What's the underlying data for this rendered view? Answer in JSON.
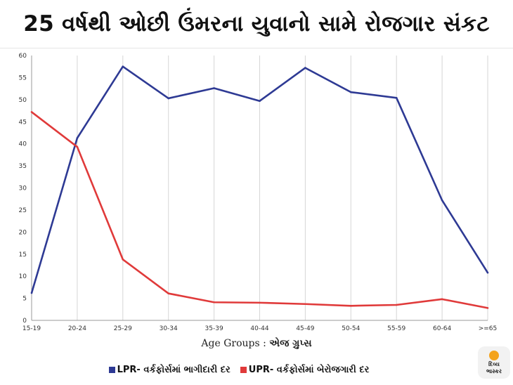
{
  "headline": "25 વર્ષથી ઓછી ઉંમરના યુવાનો સામે રોજગાર સંકટ",
  "xaxis_label": {
    "english": "Age Groups :",
    "gujarati": "એજ ગ્રુપ્સ"
  },
  "brand": {
    "line1": "દિવ્ય",
    "line2": "ભાસ્કર",
    "sun_color": "#f4a31c"
  },
  "chart_data": {
    "type": "line",
    "categories": [
      "15-19",
      "20-24",
      "25-29",
      "30-34",
      "35-39",
      "40-44",
      "45-49",
      "50-54",
      "55-59",
      "60-64",
      ">=65"
    ],
    "series": [
      {
        "name": "LPR- વર્કફોર્સમાં ભાગીદારી દર",
        "color": "#2e3a94",
        "values": [
          6.2,
          41.3,
          57.5,
          50.3,
          52.6,
          49.7,
          57.2,
          51.7,
          50.4,
          27.2,
          10.8
        ]
      },
      {
        "name": "UPR- વર્કફોર્સમાં બેરોજગારી દર",
        "color": "#e03a3a",
        "values": [
          47.2,
          39.3,
          13.8,
          6.1,
          4.1,
          4.0,
          3.7,
          3.3,
          3.5,
          4.8,
          2.8
        ]
      }
    ],
    "yticks": [
      0,
      5,
      10,
      15,
      20,
      25,
      30,
      35,
      40,
      45,
      50,
      55,
      60
    ],
    "ylim": [
      0,
      60
    ],
    "grid": "vertical",
    "legend_position": "bottom"
  }
}
